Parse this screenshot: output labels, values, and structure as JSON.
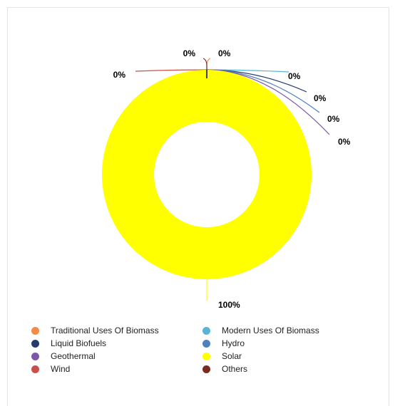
{
  "chart_data": {
    "type": "pie",
    "donut": true,
    "legend_position": "bottom",
    "series": [
      {
        "name": "Traditional Uses Of Biomass",
        "value": 0,
        "label": "0%",
        "color": "#f5894a"
      },
      {
        "name": "Modern Uses Of Biomass",
        "value": 0,
        "label": "0%",
        "color": "#5ab4d6"
      },
      {
        "name": "Liquid Biofuels",
        "value": 0,
        "label": "0%",
        "color": "#253d6b"
      },
      {
        "name": "Hydro",
        "value": 0,
        "label": "0%",
        "color": "#4f81bd"
      },
      {
        "name": "Geothermal",
        "value": 0,
        "label": "0%",
        "color": "#7e57a8"
      },
      {
        "name": "Solar",
        "value": 100,
        "label": "100%",
        "color": "#ffff00"
      },
      {
        "name": "Wind",
        "value": 0,
        "label": "0%",
        "color": "#c9504a"
      },
      {
        "name": "Others",
        "value": 0,
        "label": "0%",
        "color": "#7a2a1e"
      }
    ]
  }
}
